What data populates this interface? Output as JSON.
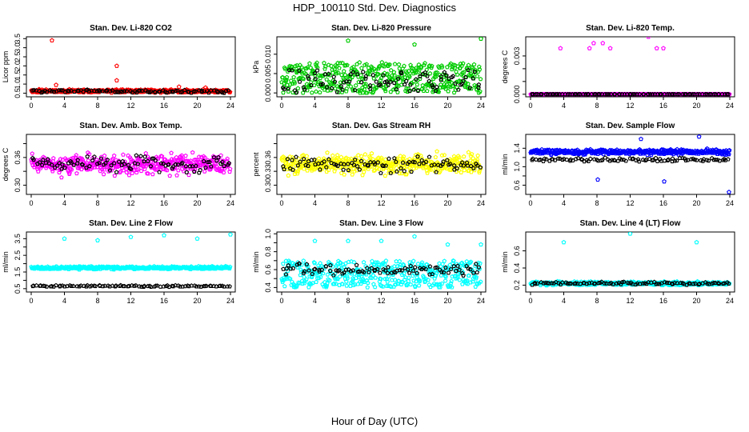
{
  "figure": {
    "title": "HDP_100110 Std. Dev. Diagnostics",
    "xlabel": "Hour of Day (UTC)",
    "colors": {
      "black": "#000000"
    }
  },
  "chart_data": [
    {
      "type": "scatter",
      "title": "Stan. Dev. Li-820 CO2",
      "ylabel": "Licor ppm",
      "xlim": [
        0,
        24
      ],
      "xticks": [
        0,
        4,
        8,
        12,
        16,
        20,
        24
      ],
      "ylim": [
        0.3,
        3.6
      ],
      "yticks": [
        0.5,
        1.0,
        1.5,
        2.0,
        2.5,
        3.0,
        3.5
      ],
      "ytick_labels": [
        "0.5",
        "1.0",
        "1.5",
        "2.0",
        "2.5",
        "3.0",
        "3.5"
      ],
      "color": "#ff0000",
      "series": {
        "base": 0.62,
        "spread": 0.12,
        "black_base": 0.6,
        "black_spread": 0.1
      },
      "outliers": [
        [
          2.5,
          3.4
        ],
        [
          10.3,
          2.0
        ],
        [
          10.3,
          1.2
        ],
        [
          3.0,
          0.95
        ],
        [
          17.8,
          0.85
        ],
        [
          21.0,
          0.8
        ]
      ]
    },
    {
      "type": "scatter",
      "title": "Stan. Dev. Li-820 Pressure",
      "ylabel": "kPa",
      "xlim": [
        0,
        24
      ],
      "xticks": [
        0,
        4,
        8,
        12,
        16,
        20,
        24
      ],
      "ylim": [
        -0.001,
        0.0145
      ],
      "yticks": [
        0.0,
        0.005,
        0.01
      ],
      "ytick_labels": [
        "0.000",
        "0.005",
        "0.010"
      ],
      "color": "#00cc00",
      "series": {
        "base": 0.0035,
        "spread": 0.004,
        "black_base": 0.0025,
        "black_spread": 0.003
      },
      "outliers": [
        [
          8.0,
          0.0135
        ],
        [
          16.0,
          0.0125
        ],
        [
          24.0,
          0.014
        ]
      ]
    },
    {
      "type": "scatter",
      "title": "Stan. Dev. Li-820 Temp.",
      "ylabel": "degrees C",
      "xlim": [
        0,
        24
      ],
      "xticks": [
        0,
        4,
        8,
        12,
        16,
        20,
        24
      ],
      "ylim": [
        -0.0002,
        0.0045
      ],
      "yticks": [
        0.0,
        0.001,
        0.002,
        0.003
      ],
      "ytick_labels": [
        "0.000",
        "",
        "",
        "0.003"
      ],
      "color": "#ff00ff",
      "series": {
        "base": 0.0,
        "spread": 0.0,
        "black_base": 0.0,
        "black_spread": 0.0
      },
      "outliers": [
        [
          3.6,
          0.0036
        ],
        [
          7.1,
          0.0036
        ],
        [
          7.6,
          0.004
        ],
        [
          8.7,
          0.004
        ],
        [
          9.6,
          0.0036
        ],
        [
          14.2,
          0.0045
        ],
        [
          15.2,
          0.0036
        ],
        [
          16.0,
          0.0036
        ]
      ]
    },
    {
      "type": "scatter",
      "title": "Stan. Dev. Amb. Box Temp.",
      "ylabel": "degrees C",
      "xlim": [
        0,
        24
      ],
      "xticks": [
        0,
        4,
        8,
        12,
        16,
        20,
        24
      ],
      "ylim": [
        0.28,
        0.41
      ],
      "yticks": [
        0.3,
        0.33,
        0.36,
        0.39
      ],
      "ytick_labels": [
        "0.30",
        "",
        "0.36",
        ""
      ],
      "color": "#ff00ff",
      "series": {
        "base": 0.345,
        "spread": 0.03,
        "black_base": 0.345,
        "black_spread": 0.02
      },
      "outliers": []
    },
    {
      "type": "scatter",
      "title": "Stan. Dev. Gas Stream RH",
      "ylabel": "percent",
      "xlim": [
        0,
        24
      ],
      "xticks": [
        0,
        4,
        8,
        12,
        16,
        20,
        24
      ],
      "ylim": [
        0.28,
        0.41
      ],
      "yticks": [
        0.3,
        0.33,
        0.36,
        0.39
      ],
      "ytick_labels": [
        "0.30",
        "0.33",
        "0.36",
        ""
      ],
      "color": "#ffff00",
      "series": {
        "base": 0.345,
        "spread": 0.03,
        "black_base": 0.345,
        "black_spread": 0.02
      },
      "outliers": []
    },
    {
      "type": "scatter",
      "title": "Stan. Dev. Sample Flow",
      "ylabel": "ml/min",
      "xlim": [
        0,
        24
      ],
      "xticks": [
        0,
        4,
        8,
        12,
        16,
        20,
        24
      ],
      "ylim": [
        0.4,
        1.7
      ],
      "yticks": [
        0.6,
        0.8,
        1.0,
        1.2,
        1.4
      ],
      "ytick_labels": [
        "0.6",
        "",
        "1.0",
        "",
        "1.4"
      ],
      "color": "#0000ff",
      "series": {
        "base": 1.32,
        "spread": 0.08,
        "black_base": 1.15,
        "black_spread": 0.05
      },
      "outliers": [
        [
          8.1,
          0.72
        ],
        [
          16.1,
          0.68
        ],
        [
          23.9,
          0.45
        ],
        [
          20.3,
          1.65
        ],
        [
          13.3,
          1.6
        ]
      ]
    },
    {
      "type": "scatter",
      "title": "Stan. Dev. Line 2 Flow",
      "ylabel": "ml/min",
      "xlim": [
        0,
        24
      ],
      "xticks": [
        0,
        4,
        8,
        12,
        16,
        20,
        24
      ],
      "ylim": [
        0.3,
        3.9
      ],
      "yticks": [
        0.5,
        1.0,
        1.5,
        2.0,
        2.5,
        3.0,
        3.5
      ],
      "ytick_labels": [
        "0.5",
        "",
        "1.5",
        "",
        "2.5",
        "",
        "3.5"
      ],
      "color": "#00ffff",
      "series": {
        "base": 1.75,
        "spread": 0.12,
        "black_base": 0.65,
        "black_spread": 0.06
      },
      "outliers": [
        [
          4.0,
          3.5
        ],
        [
          8.0,
          3.4
        ],
        [
          12.0,
          3.6
        ],
        [
          16.0,
          3.7
        ],
        [
          20.0,
          3.5
        ],
        [
          24.0,
          3.75
        ]
      ]
    },
    {
      "type": "scatter",
      "title": "Stan. Dev. Line 3 Flow",
      "ylabel": "ml/min",
      "xlim": [
        0,
        24
      ],
      "xticks": [
        0,
        4,
        8,
        12,
        16,
        20,
        24
      ],
      "ylim": [
        0.35,
        1.02
      ],
      "yticks": [
        0.4,
        0.5,
        0.6,
        0.7,
        0.8,
        0.9,
        1.0
      ],
      "ytick_labels": [
        "0.4",
        "",
        "0.6",
        "",
        "0.8",
        "",
        "1.0"
      ],
      "color": "#00ffff",
      "series": {
        "base": 0.55,
        "spread": 0.15,
        "black_base": 0.6,
        "black_spread": 0.08
      },
      "outliers": [
        [
          4.0,
          0.92
        ],
        [
          8.0,
          0.92
        ],
        [
          12.0,
          0.92
        ],
        [
          16.0,
          0.97
        ],
        [
          20.0,
          0.88
        ],
        [
          24.0,
          0.88
        ]
      ]
    },
    {
      "type": "scatter",
      "title": "Stan. Dev. Line 4 (LT) Flow",
      "ylabel": "ml/min",
      "xlim": [
        0,
        24
      ],
      "xticks": [
        0,
        4,
        8,
        12,
        16,
        20,
        24
      ],
      "ylim": [
        0.12,
        0.82
      ],
      "yticks": [
        0.2,
        0.4,
        0.6
      ],
      "ytick_labels": [
        "0.2",
        "0.4",
        "0.6"
      ],
      "color": "#00ffff",
      "series": {
        "base": 0.22,
        "spread": 0.03,
        "black_base": 0.22,
        "black_spread": 0.02
      },
      "outliers": [
        [
          4.0,
          0.7
        ],
        [
          12.0,
          0.8
        ],
        [
          20.0,
          0.7
        ]
      ]
    }
  ]
}
